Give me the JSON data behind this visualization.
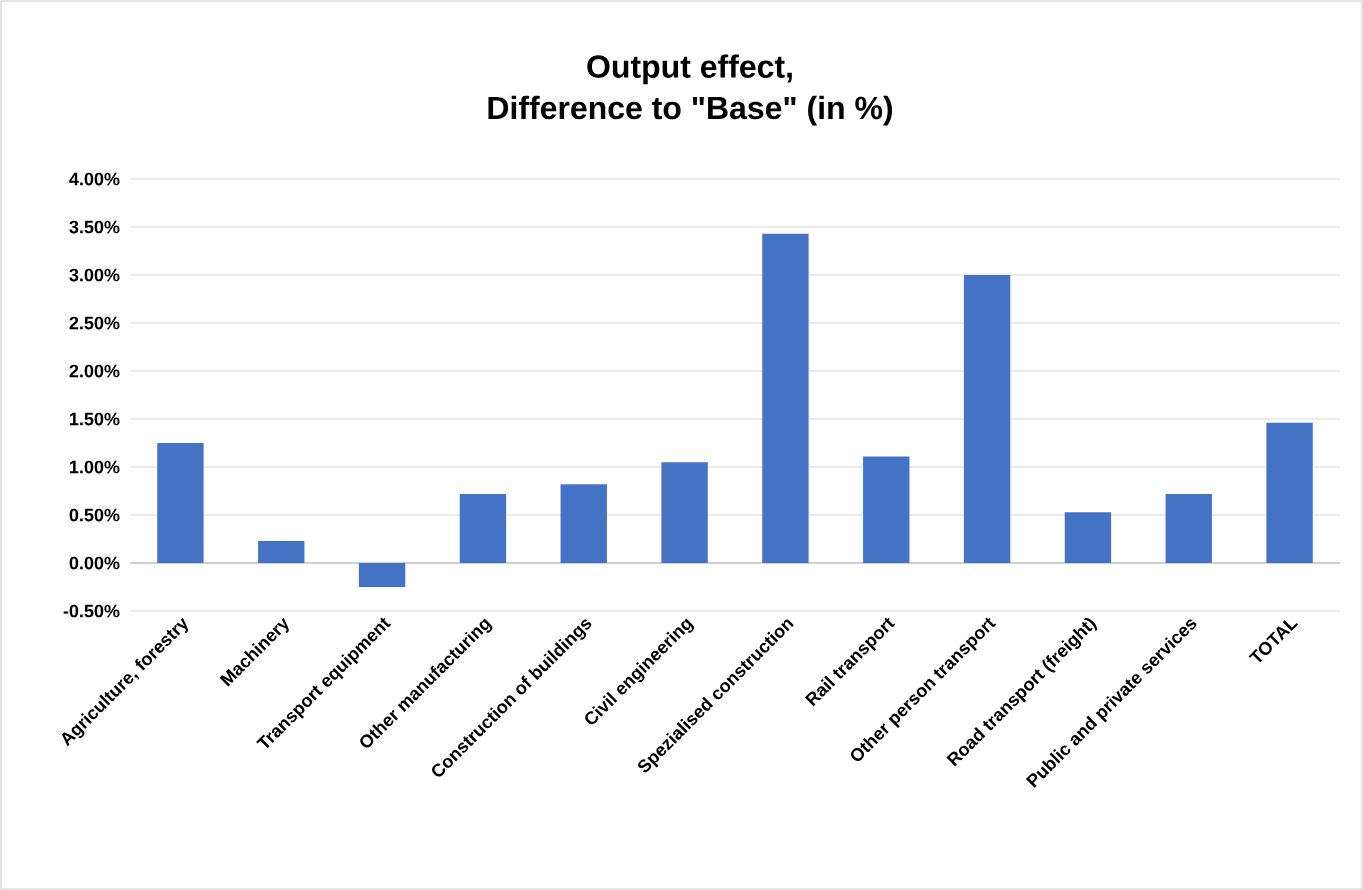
{
  "chart_data": {
    "type": "bar",
    "title": "Output effect,\nDifference to \"Base\" (in %)",
    "categories": [
      "Agriculture, forestry",
      "Machinery",
      "Transport equipment",
      "Other manufacturing",
      "Construction of buildings",
      "Civil engineering",
      "Spezialised construction",
      "Rail transport",
      "Other person transport",
      "Road transport (freight)",
      "Public and private services",
      "TOTAL"
    ],
    "values": [
      1.25,
      0.23,
      -0.25,
      0.72,
      0.82,
      1.05,
      3.43,
      1.11,
      3.0,
      0.53,
      0.72,
      1.46
    ],
    "color": "#4472c4",
    "ylim": [
      -0.5,
      4
    ],
    "yticks": [
      {
        "value": -0.5,
        "label": "-0.50%"
      },
      {
        "value": 0,
        "label": "0.00%"
      },
      {
        "value": 0.5,
        "label": "0.50%"
      },
      {
        "value": 1,
        "label": "1.00%"
      },
      {
        "value": 1.5,
        "label": "1.50%"
      },
      {
        "value": 2,
        "label": "2.00%"
      },
      {
        "value": 2.5,
        "label": "2.50%"
      },
      {
        "value": 3,
        "label": "3.00%"
      },
      {
        "value": 3.5,
        "label": "3.50%"
      },
      {
        "value": 4,
        "label": "4.00%"
      }
    ],
    "grid": "y"
  }
}
